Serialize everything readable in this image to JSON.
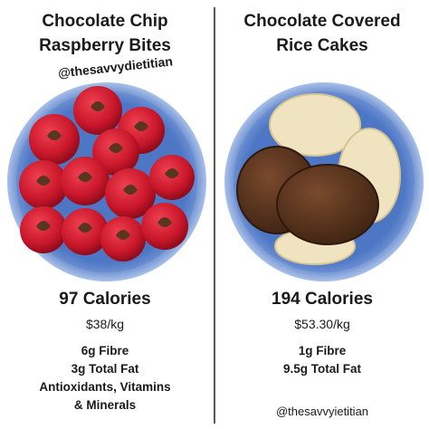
{
  "left": {
    "title_line1": "Chocolate Chip",
    "title_line2": "Raspberry Bites",
    "handle": "@thesavvydietitian",
    "calories": "97 Calories",
    "price": "$38/kg",
    "facts": [
      "6g Fibre",
      "3g Total Fat",
      "Antioxidants, Vitamins",
      "& Minerals"
    ]
  },
  "right": {
    "title_line1": "Chocolate Covered",
    "title_line2": "Rice Cakes",
    "calories": "194 Calories",
    "price": "$53.30/kg",
    "facts": [
      "1g Fibre",
      "9.5g Total Fat"
    ],
    "handle": "@thesavvyietitian"
  },
  "colors": {
    "bowl_blue": "#4f78c8",
    "raspberry": "#d0202e",
    "chocolate": "#5a3520",
    "rice_cake": "#efe3c0"
  }
}
